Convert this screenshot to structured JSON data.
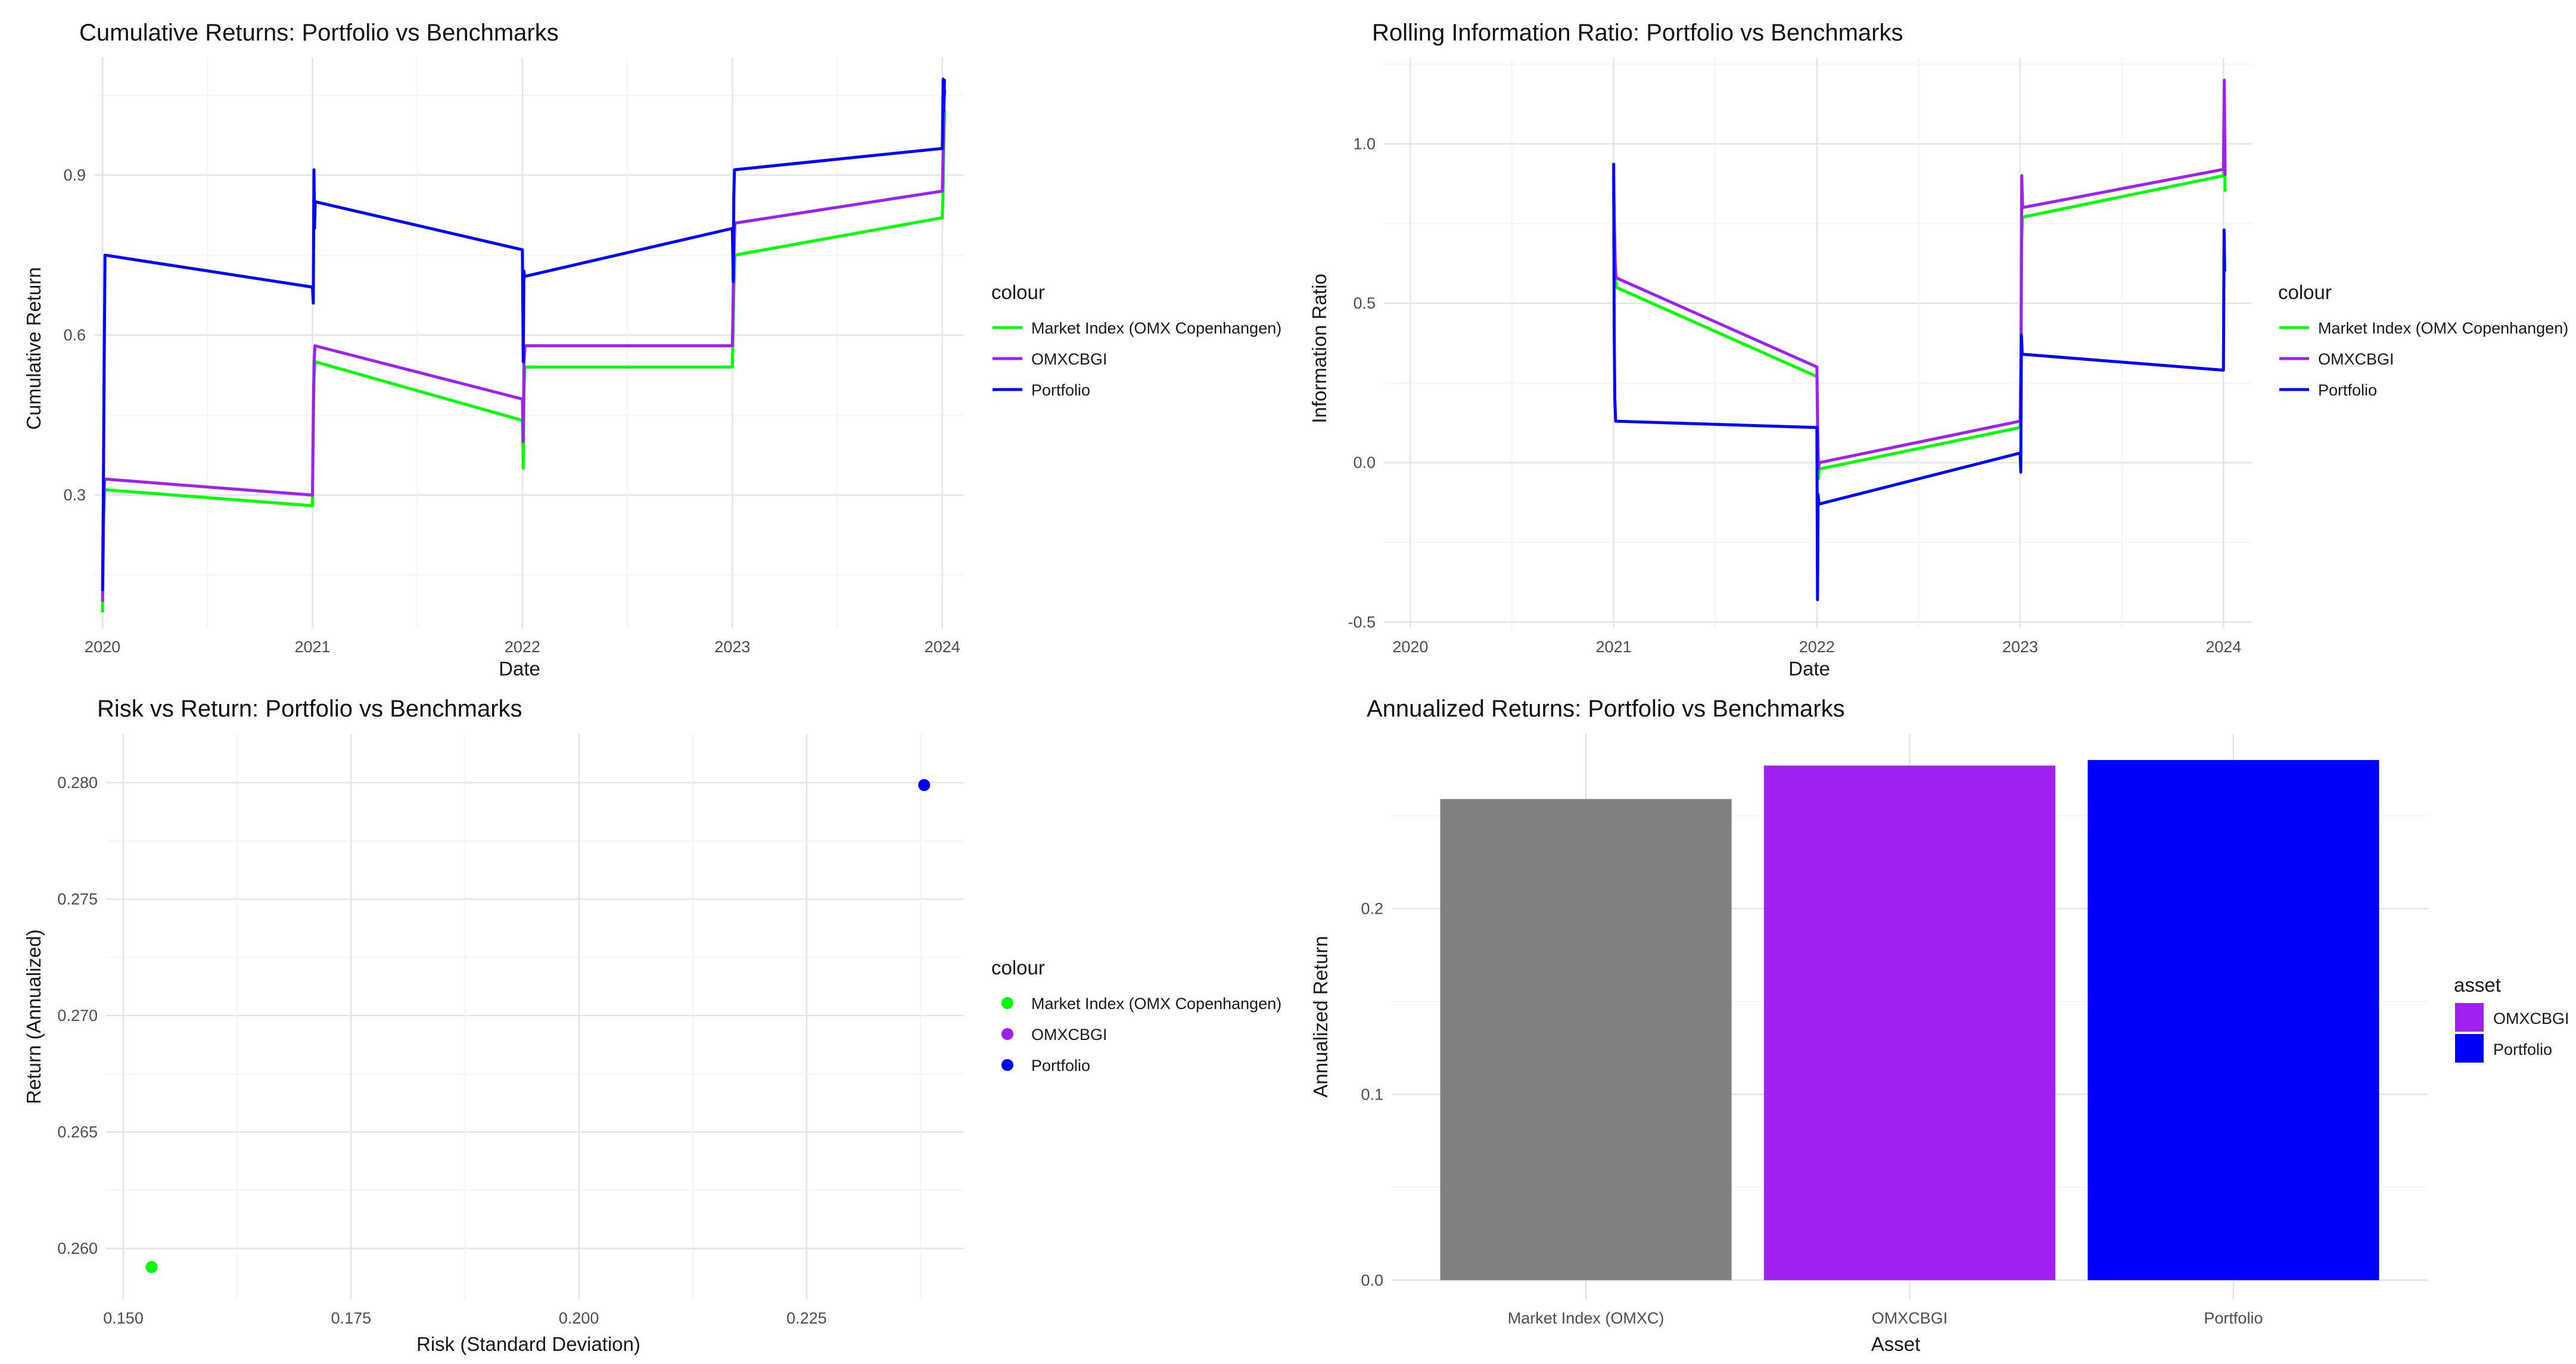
{
  "chart_data": [
    {
      "type": "line",
      "title": "Cumulative Returns: Portfolio vs Benchmarks",
      "xlabel": "Date",
      "ylabel": "Cumulative Return",
      "xlim": [
        2019.96,
        2024.1
      ],
      "ylim": [
        0.05,
        1.12
      ],
      "xticks": [
        2020,
        2021,
        2022,
        2023,
        2024
      ],
      "xtick_labels": [
        "2020",
        "2021",
        "2022",
        "2023",
        "2024"
      ],
      "yticks": [
        0.3,
        0.6,
        0.9
      ],
      "ytick_labels": [
        "0.3",
        "0.6",
        "0.9"
      ],
      "legend": {
        "title": "colour",
        "position": "right",
        "labels": [
          "Market Index (OMX Copenhangen)",
          "OMXCBGI",
          "Portfolio"
        ]
      },
      "series": [
        {
          "name": "Market Index (OMX Copenhangen)",
          "color": "#00ff00",
          "x": [
            2020.0,
            2020.005,
            2020.01,
            2021.0,
            2021.005,
            2021.008,
            2021.012,
            2022.0,
            2022.004,
            2022.008,
            2022.012,
            2023.0,
            2023.004,
            2023.008,
            2023.012,
            2024.0,
            2024.004,
            2024.008,
            2024.012
          ],
          "y": [
            0.08,
            0.25,
            0.31,
            0.28,
            0.46,
            0.52,
            0.55,
            0.44,
            0.35,
            0.5,
            0.54,
            0.54,
            0.62,
            0.7,
            0.75,
            0.82,
            0.88,
            0.98,
            1.02
          ]
        },
        {
          "name": "OMXCBGI",
          "color": "#a020f0",
          "x": [
            2020.0,
            2020.005,
            2020.01,
            2021.0,
            2021.005,
            2021.008,
            2021.012,
            2022.0,
            2022.004,
            2022.008,
            2022.012,
            2023.0,
            2023.004,
            2023.008,
            2023.012,
            2024.0,
            2024.004,
            2024.008,
            2024.012
          ],
          "y": [
            0.1,
            0.27,
            0.33,
            0.3,
            0.49,
            0.55,
            0.58,
            0.48,
            0.4,
            0.55,
            0.58,
            0.58,
            0.68,
            0.76,
            0.81,
            0.87,
            0.95,
            1.04,
            1.06
          ]
        },
        {
          "name": "Portfolio",
          "color": "#0000ff",
          "x": [
            2020.0,
            2020.004,
            2020.008,
            2020.012,
            2021.0,
            2021.004,
            2021.007,
            2021.01,
            2021.013,
            2022.0,
            2022.004,
            2022.007,
            2022.01,
            2023.0,
            2023.004,
            2023.007,
            2023.01,
            2024.0,
            2024.004,
            2024.007,
            2024.01
          ],
          "y": [
            0.12,
            0.3,
            0.55,
            0.75,
            0.69,
            0.66,
            0.91,
            0.8,
            0.85,
            0.76,
            0.55,
            0.72,
            0.71,
            0.8,
            0.7,
            0.86,
            0.91,
            0.95,
            1.08,
            1.02,
            1.08
          ]
        }
      ]
    },
    {
      "type": "line",
      "title": "Rolling Information Ratio: Portfolio vs Benchmarks",
      "xlabel": "Date",
      "ylabel": "Information Ratio",
      "xlim": [
        2019.87,
        2024.14
      ],
      "ylim": [
        -0.52,
        1.27
      ],
      "xticks": [
        2020,
        2021,
        2022,
        2023,
        2024
      ],
      "xtick_labels": [
        "2020",
        "2021",
        "2022",
        "2023",
        "2024"
      ],
      "yticks": [
        -0.5,
        0.0,
        0.5,
        1.0
      ],
      "ytick_labels": [
        "-0.5",
        "0.0",
        "0.5",
        "1.0"
      ],
      "legend": {
        "title": "colour",
        "position": "right",
        "labels": [
          "Market Index (OMX Copenhangen)",
          "OMXCBGI",
          "Portfolio"
        ]
      },
      "series": [
        {
          "name": "Market Index (OMX Copenhangen)",
          "color": "#00ff00",
          "x": [
            2021.0,
            2021.004,
            2021.008,
            2021.012,
            2022.0,
            2022.004,
            2022.008,
            2022.012,
            2023.0,
            2023.004,
            2023.008,
            2023.012,
            2024.0,
            2024.004,
            2024.008
          ],
          "y": [
            0.85,
            0.7,
            0.6,
            0.55,
            0.27,
            0.05,
            -0.05,
            -0.02,
            0.11,
            0.3,
            0.7,
            0.77,
            0.9,
            1.1,
            0.85
          ]
        },
        {
          "name": "OMXCBGI",
          "color": "#a020f0",
          "x": [
            2021.0,
            2021.004,
            2021.008,
            2021.012,
            2022.0,
            2022.004,
            2022.008,
            2022.012,
            2023.0,
            2023.004,
            2023.008,
            2023.012,
            2024.0,
            2024.004,
            2024.008
          ],
          "y": [
            0.9,
            0.75,
            0.63,
            0.58,
            0.3,
            0.1,
            -0.02,
            0.0,
            0.13,
            0.35,
            0.9,
            0.8,
            0.92,
            1.2,
            0.9
          ]
        },
        {
          "name": "Portfolio",
          "color": "#0000ff",
          "x": [
            2021.0,
            2021.003,
            2021.006,
            2021.01,
            2022.0,
            2022.003,
            2022.006,
            2022.01,
            2023.0,
            2023.003,
            2023.006,
            2023.01,
            2024.0,
            2024.003,
            2024.006
          ],
          "y": [
            0.94,
            0.4,
            0.2,
            0.13,
            0.11,
            -0.43,
            -0.1,
            -0.13,
            0.03,
            -0.03,
            0.4,
            0.34,
            0.29,
            0.73,
            0.6
          ]
        }
      ]
    },
    {
      "type": "scatter",
      "title": "Risk vs Return: Portfolio vs Benchmarks",
      "xlabel": "Risk (Standard Deviation)",
      "ylabel": "Return (Annualized)",
      "xlim": [
        0.1481,
        0.2422
      ],
      "ylim": [
        0.2578,
        0.2821
      ],
      "xticks": [
        0.15,
        0.175,
        0.2,
        0.225
      ],
      "xtick_labels": [
        "0.150",
        "0.175",
        "0.200",
        "0.225"
      ],
      "yticks": [
        0.26,
        0.265,
        0.27,
        0.275,
        0.28
      ],
      "ytick_labels": [
        "0.260",
        "0.265",
        "0.270",
        "0.275",
        "0.280"
      ],
      "legend": {
        "title": "colour",
        "position": "right",
        "labels": [
          "Market Index (OMX Copenhangen)",
          "OMXCBGI",
          "Portfolio"
        ]
      },
      "series": [
        {
          "name": "Market Index (OMX Copenhangen)",
          "color": "#00ff00",
          "x": [
            0.1531
          ],
          "y": [
            0.2592
          ]
        },
        {
          "name": "OMXCBGI",
          "color": "#a020f0",
          "x": [
            0.2379
          ],
          "y": [
            0.2799
          ]
        },
        {
          "name": "Portfolio",
          "color": "#0000ff",
          "x": [
            0.2379
          ],
          "y": [
            0.2799
          ]
        }
      ]
    },
    {
      "type": "bar",
      "title": "Annualized Returns: Portfolio vs Benchmarks",
      "xlabel": "Asset",
      "ylabel": "Annualized Return",
      "categories": [
        "Market Index (OMXC)",
        "OMXCBGI",
        "Portfolio"
      ],
      "values": [
        0.259,
        0.277,
        0.28
      ],
      "colors": [
        "#808080",
        "#a020f0",
        "#0000ff"
      ],
      "ylim": [
        -0.0105,
        0.2941
      ],
      "yticks": [
        0.0,
        0.1,
        0.2
      ],
      "ytick_labels": [
        "0.0",
        "0.1",
        "0.2"
      ],
      "legend": {
        "title": "asset",
        "position": "right",
        "labels": [
          "OMXCBGI",
          "Portfolio"
        ],
        "colors": [
          "#a020f0",
          "#0000ff"
        ]
      }
    }
  ]
}
